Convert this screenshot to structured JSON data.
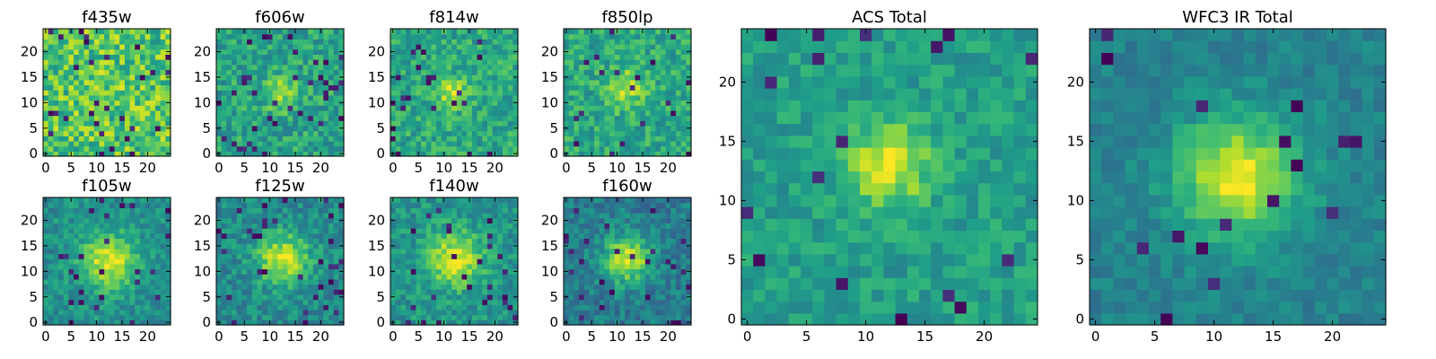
{
  "chart_data": [
    {
      "type": "heatmap",
      "title": "f435w",
      "grid_size": 25,
      "xlim": [
        -0.5,
        24.5
      ],
      "ylim": [
        -0.5,
        24.5
      ],
      "x_ticks": [
        0,
        5,
        10,
        15,
        20
      ],
      "y_ticks": [
        0,
        5,
        10,
        15,
        20
      ],
      "colormap": "viridis",
      "vmin": 0,
      "vmax": 1,
      "source": {
        "center": [
          12,
          12
        ],
        "sigma": 3.2,
        "amplitude": 0.05,
        "background": 0.72,
        "noise": 0.22,
        "dark_fraction": 0.04,
        "seed": 11
      }
    },
    {
      "type": "heatmap",
      "title": "f606w",
      "grid_size": 25,
      "xlim": [
        -0.5,
        24.5
      ],
      "ylim": [
        -0.5,
        24.5
      ],
      "x_ticks": [
        0,
        5,
        10,
        15,
        20
      ],
      "y_ticks": [
        0,
        5,
        10,
        15,
        20
      ],
      "colormap": "viridis",
      "vmin": 0,
      "vmax": 1,
      "source": {
        "center": [
          12,
          12
        ],
        "sigma": 2.2,
        "amplitude": 0.3,
        "background": 0.58,
        "noise": 0.16,
        "dark_fraction": 0.05,
        "seed": 23
      }
    },
    {
      "type": "heatmap",
      "title": "f814w",
      "grid_size": 25,
      "xlim": [
        -0.5,
        24.5
      ],
      "ylim": [
        -0.5,
        24.5
      ],
      "x_ticks": [
        0,
        5,
        10,
        15,
        20
      ],
      "y_ticks": [
        0,
        5,
        10,
        15,
        20
      ],
      "colormap": "viridis",
      "vmin": 0,
      "vmax": 1,
      "source": {
        "center": [
          11.5,
          12
        ],
        "sigma": 2.2,
        "amplitude": 0.3,
        "background": 0.6,
        "noise": 0.15,
        "dark_fraction": 0.04,
        "seed": 37
      }
    },
    {
      "type": "heatmap",
      "title": "f850lp",
      "grid_size": 25,
      "xlim": [
        -0.5,
        24.5
      ],
      "ylim": [
        -0.5,
        24.5
      ],
      "x_ticks": [
        0,
        5,
        10,
        15,
        20
      ],
      "y_ticks": [
        0,
        5,
        10,
        15,
        20
      ],
      "colormap": "viridis",
      "vmin": 0,
      "vmax": 1,
      "source": {
        "center": [
          12,
          13
        ],
        "sigma": 2.6,
        "amplitude": 0.28,
        "background": 0.6,
        "noise": 0.15,
        "dark_fraction": 0.04,
        "seed": 41
      }
    },
    {
      "type": "heatmap",
      "title": "f105w",
      "grid_size": 25,
      "xlim": [
        -0.5,
        24.5
      ],
      "ylim": [
        -0.5,
        24.5
      ],
      "x_ticks": [
        0,
        5,
        10,
        15,
        20
      ],
      "y_ticks": [
        0,
        5,
        10,
        15,
        20
      ],
      "colormap": "viridis",
      "vmin": 0,
      "vmax": 1,
      "source": {
        "center": [
          12.5,
          12
        ],
        "sigma": 3.8,
        "amplitude": 0.45,
        "background": 0.5,
        "noise": 0.12,
        "dark_fraction": 0.05,
        "seed": 53
      }
    },
    {
      "type": "heatmap",
      "title": "f125w",
      "grid_size": 25,
      "xlim": [
        -0.5,
        24.5
      ],
      "ylim": [
        -0.5,
        24.5
      ],
      "x_ticks": [
        0,
        5,
        10,
        15,
        20
      ],
      "y_ticks": [
        0,
        5,
        10,
        15,
        20
      ],
      "colormap": "viridis",
      "vmin": 0,
      "vmax": 1,
      "source": {
        "center": [
          12.5,
          12.5
        ],
        "sigma": 3.6,
        "amplitude": 0.45,
        "background": 0.48,
        "noise": 0.13,
        "dark_fraction": 0.05,
        "seed": 67
      }
    },
    {
      "type": "heatmap",
      "title": "f140w",
      "grid_size": 25,
      "xlim": [
        -0.5,
        24.5
      ],
      "ylim": [
        -0.5,
        24.5
      ],
      "x_ticks": [
        0,
        5,
        10,
        15,
        20
      ],
      "y_ticks": [
        0,
        5,
        10,
        15,
        20
      ],
      "colormap": "viridis",
      "vmin": 0,
      "vmax": 1,
      "source": {
        "center": [
          12,
          12.5
        ],
        "sigma": 3.8,
        "amplitude": 0.42,
        "background": 0.52,
        "noise": 0.13,
        "dark_fraction": 0.05,
        "seed": 79
      }
    },
    {
      "type": "heatmap",
      "title": "f160w",
      "grid_size": 25,
      "xlim": [
        -0.5,
        24.5
      ],
      "ylim": [
        -0.5,
        24.5
      ],
      "x_ticks": [
        0,
        5,
        10,
        15,
        20
      ],
      "y_ticks": [
        0,
        5,
        10,
        15,
        20
      ],
      "colormap": "viridis",
      "vmin": 0,
      "vmax": 1,
      "source": {
        "center": [
          12,
          12.5
        ],
        "sigma": 3.2,
        "amplitude": 0.52,
        "background": 0.42,
        "noise": 0.13,
        "dark_fraction": 0.05,
        "seed": 83
      }
    },
    {
      "type": "heatmap",
      "title": "ACS Total",
      "grid_size": 25,
      "xlim": [
        -0.5,
        24.5
      ],
      "ylim": [
        -0.5,
        24.5
      ],
      "x_ticks": [
        0,
        5,
        10,
        15,
        20
      ],
      "y_ticks": [
        0,
        5,
        10,
        15,
        20
      ],
      "colormap": "viridis",
      "vmin": 0,
      "vmax": 1,
      "source": {
        "center": [
          12,
          13
        ],
        "sigma": 2.4,
        "amplitude": 0.4,
        "background": 0.56,
        "noise": 0.11,
        "dark_fraction": 0.035,
        "seed": 97
      }
    },
    {
      "type": "heatmap",
      "title": "WFC3 IR Total",
      "grid_size": 25,
      "xlim": [
        -0.5,
        24.5
      ],
      "ylim": [
        -0.5,
        24.5
      ],
      "x_ticks": [
        0,
        5,
        10,
        15,
        20
      ],
      "y_ticks": [
        0,
        5,
        10,
        15,
        20
      ],
      "colormap": "viridis",
      "vmin": 0,
      "vmax": 1,
      "source": {
        "center": [
          12,
          12
        ],
        "sigma": 3.6,
        "amplitude": 0.52,
        "background": 0.44,
        "noise": 0.08,
        "dark_fraction": 0.02,
        "seed": 101
      }
    }
  ],
  "colors": {
    "viridis": [
      "#440154",
      "#482878",
      "#3e4989",
      "#31688e",
      "#26828e",
      "#1f9e89",
      "#35b779",
      "#6ece58",
      "#b5de2b",
      "#fde725"
    ]
  }
}
